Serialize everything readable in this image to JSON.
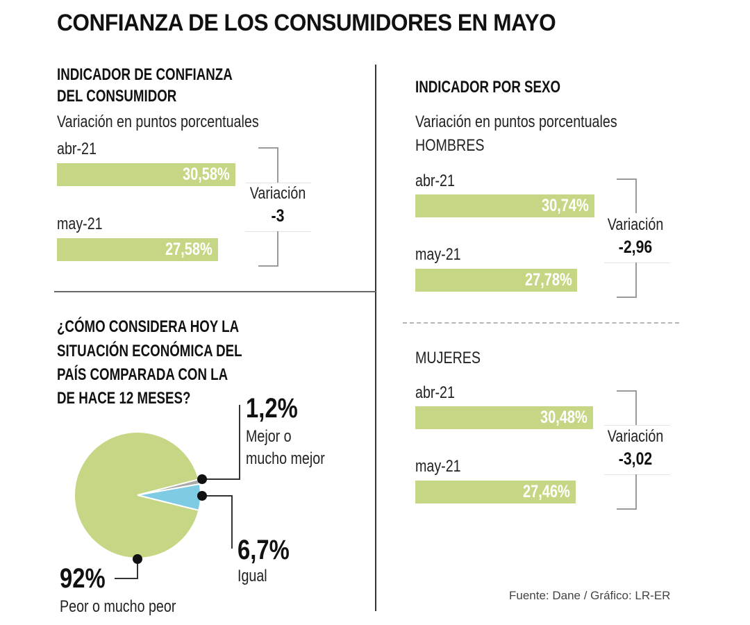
{
  "title": "CONFIANZA DE LOS CONSUMIDORES EN MAYO",
  "colors": {
    "bar": "#c5d784",
    "pie_worse": "#c5d784",
    "pie_same": "#7fcbe3",
    "pie_better": "#a9a9a9",
    "text": "#111111"
  },
  "panel_general": {
    "heading_line1": "INDICADOR DE CONFIANZA",
    "heading_line2": "DEL CONSUMIDOR",
    "subtitle": "Variación en puntos porcentuales",
    "variation_label": "Variación",
    "variation_value": "-3"
  },
  "panel_sex": {
    "heading": "INDICADOR POR SEXO",
    "subtitle": "Variación en puntos porcentuales",
    "men_label": "HOMBRES",
    "women_label": "MUJERES",
    "men_variation_label": "Variación",
    "men_variation_value": "-2,96",
    "women_variation_label": "Variación",
    "women_variation_value": "-3,02"
  },
  "panel_pie": {
    "question_line1": "¿CÓMO CONSIDERA HOY LA",
    "question_line2": "SITUACIÓN ECONÓMICA DEL",
    "question_line3": "PAÍS COMPARADA CON LA",
    "question_line4": "DE HACE 12 MESES?",
    "better_pct": "1,2%",
    "better_desc1": "Mejor o",
    "better_desc2": "mucho mejor",
    "same_pct": "6,7%",
    "same_desc": "Igual",
    "worse_pct": "92%",
    "worse_desc": "Peor o mucho peor"
  },
  "source": "Fuente: Dane / Gráfico: LR-ER",
  "chart_data": [
    {
      "type": "bar",
      "title": "INDICADOR DE CONFIANZA DEL CONSUMIDOR",
      "subtitle": "Variación en puntos porcentuales",
      "categories": [
        "abr-21",
        "may-21"
      ],
      "values": [
        30.58,
        27.58
      ],
      "labels": [
        "30,58%",
        "27,58%"
      ],
      "variation": -3
    },
    {
      "type": "bar",
      "title": "INDICADOR POR SEXO - HOMBRES",
      "subtitle": "Variación en puntos porcentuales",
      "categories": [
        "abr-21",
        "may-21"
      ],
      "values": [
        30.74,
        27.78
      ],
      "labels": [
        "30,74%",
        "27,78%"
      ],
      "variation": -2.96
    },
    {
      "type": "bar",
      "title": "INDICADOR POR SEXO - MUJERES",
      "categories": [
        "abr-21",
        "may-21"
      ],
      "values": [
        30.48,
        27.46
      ],
      "labels": [
        "30,48%",
        "27,46%"
      ],
      "variation": -3.02
    },
    {
      "type": "pie",
      "title": "¿CÓMO CONSIDERA HOY LA SITUACIÓN ECONÓMICA DEL PAÍS COMPARADA CON LA DE HACE 12 MESES?",
      "slices": [
        {
          "label": "Mejor o mucho mejor",
          "value": 1.2,
          "display": "1,2%"
        },
        {
          "label": "Igual",
          "value": 6.7,
          "display": "6,7%"
        },
        {
          "label": "Peor o mucho peor",
          "value": 92,
          "display": "92%"
        }
      ]
    }
  ]
}
